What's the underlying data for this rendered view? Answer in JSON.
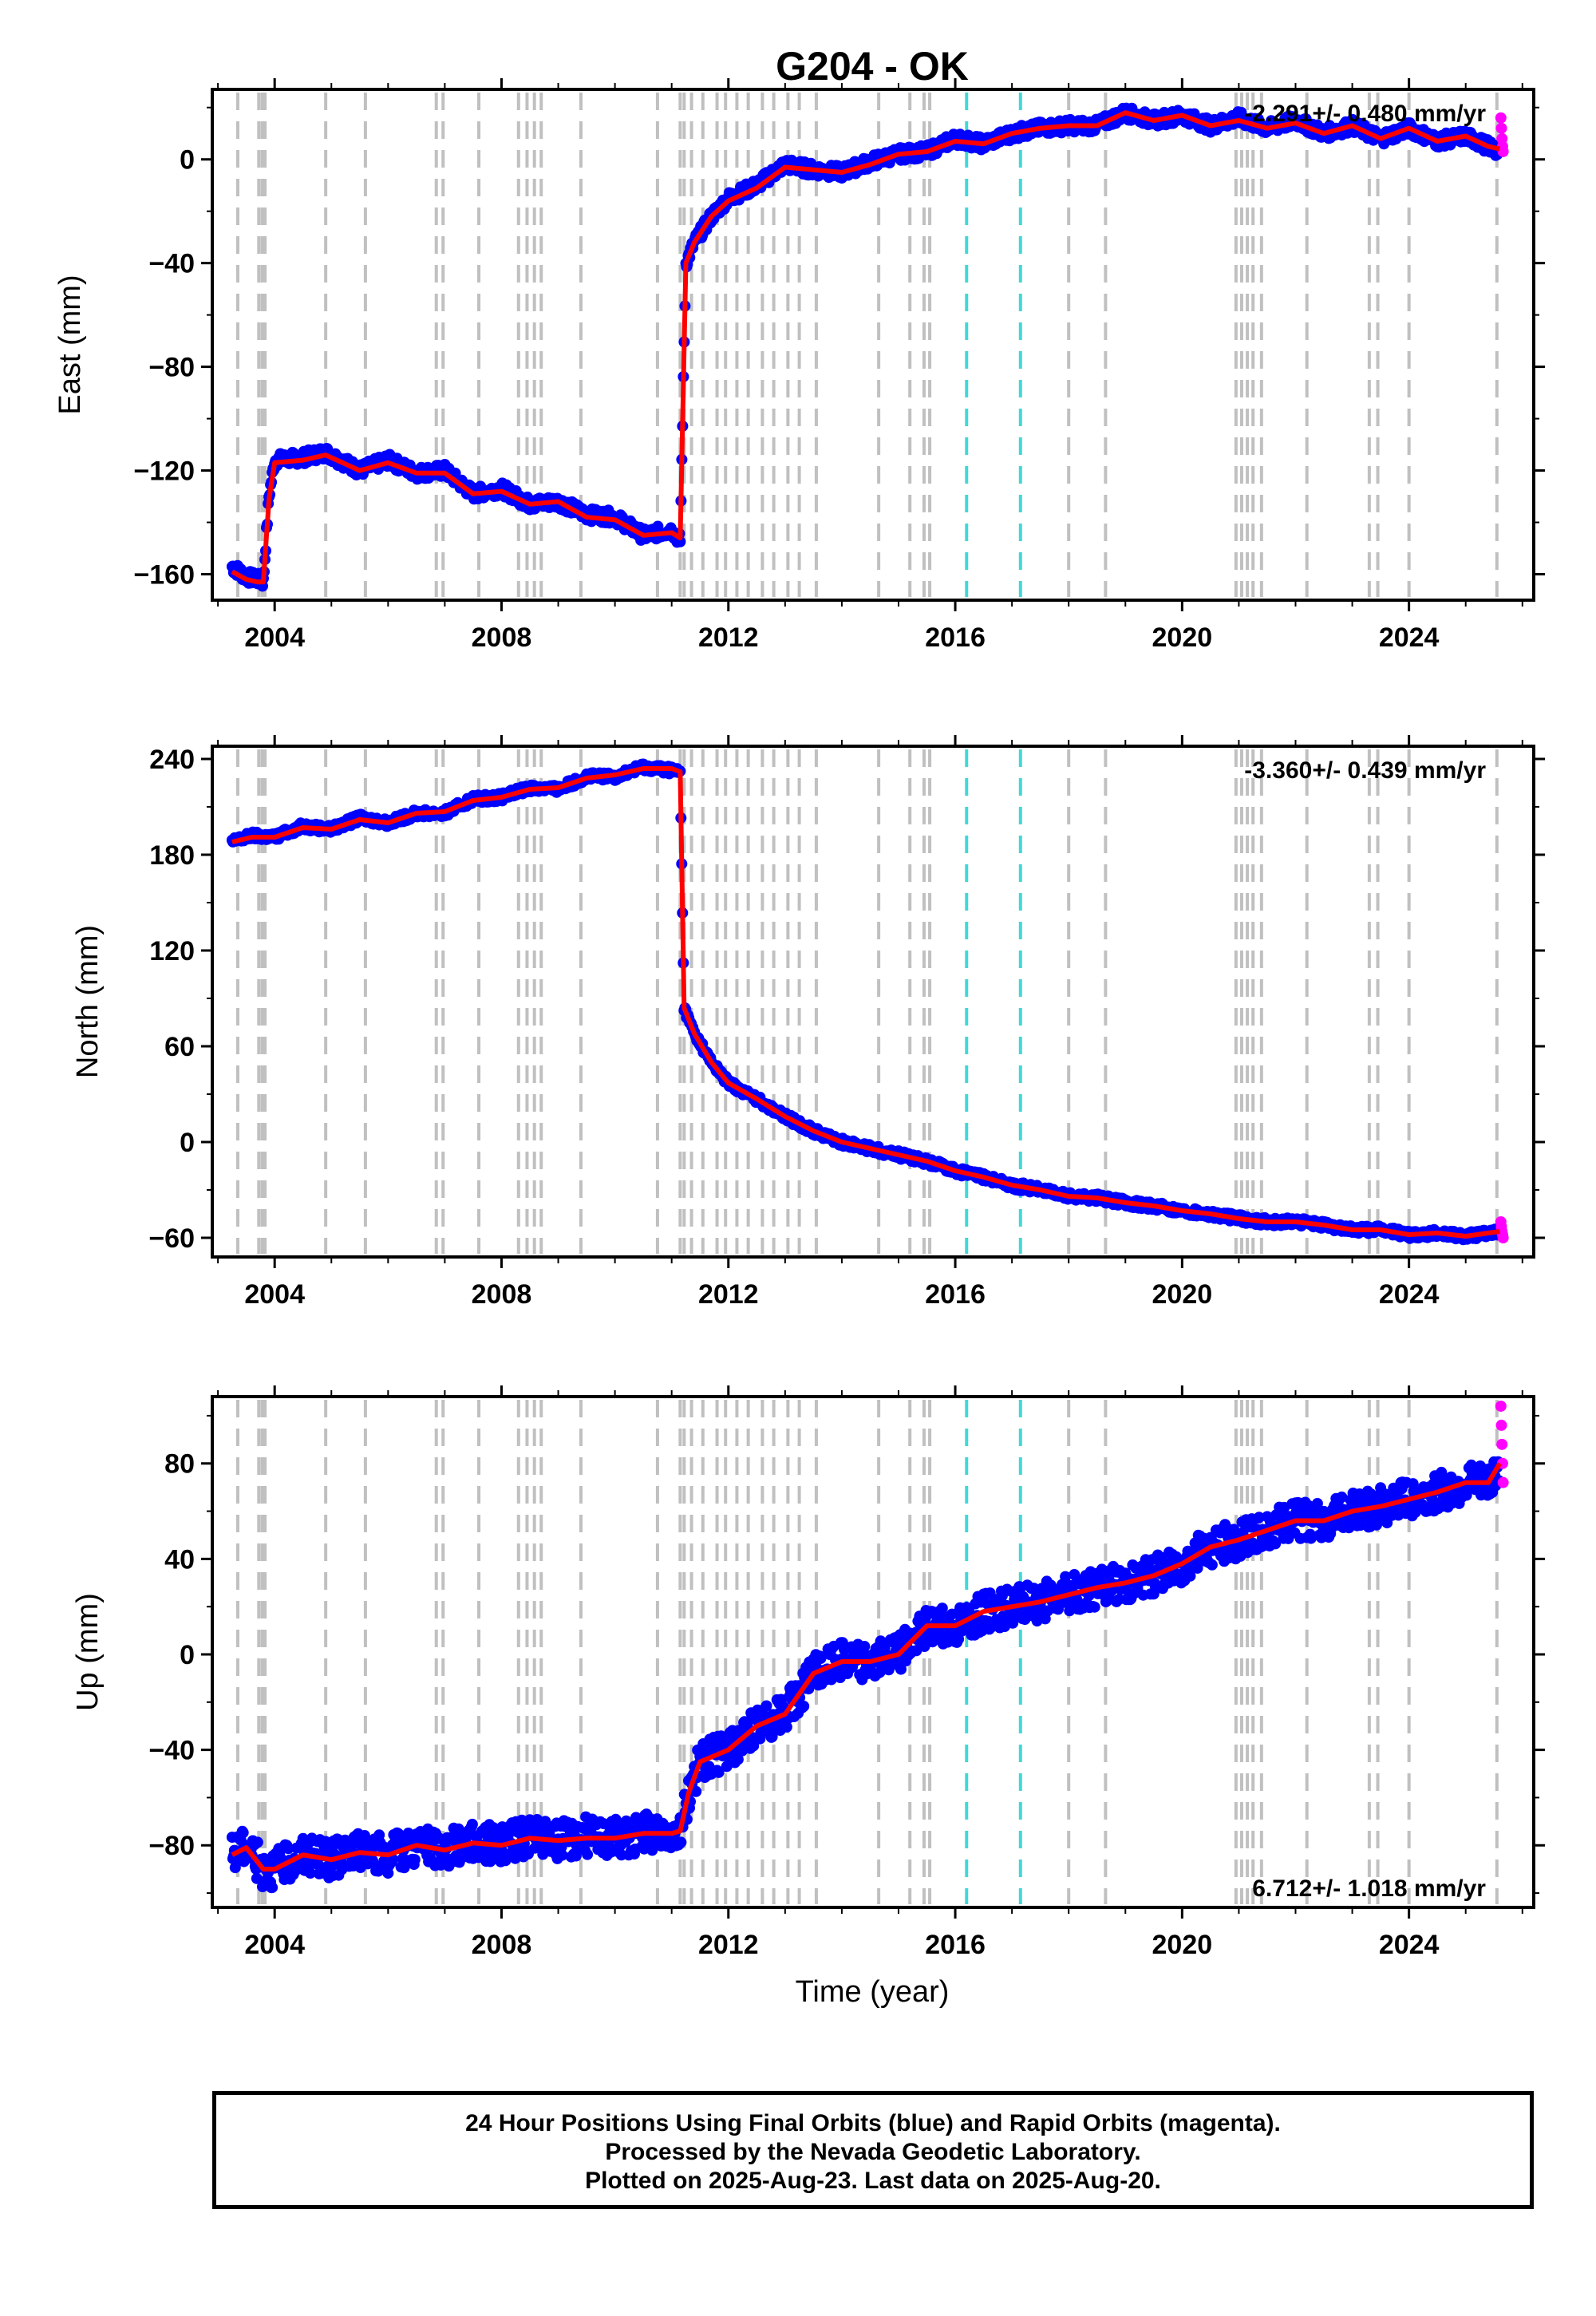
{
  "title": "G204 - OK",
  "xlabel": "Time (year)",
  "footer": {
    "line1": "24 Hour Positions Using Final Orbits (blue) and Rapid Orbits (magenta).",
    "line2": "Processed by the Nevada Geodetic Laboratory.",
    "line3": "Plotted on 2025-Aug-23. Last data on 2025-Aug-20."
  },
  "colors": {
    "final_orbits": "#0000ff",
    "rapid_orbits": "#ff00ff",
    "model": "#ff0000",
    "event_line": "#c0c0c0",
    "equipment_line": "#40d8d8"
  },
  "chart_data": [
    {
      "type": "scatter",
      "panel": "east",
      "ylabel": "East (mm)",
      "xlim": [
        2002.9,
        2026.2
      ],
      "ylim": [
        -170,
        27
      ],
      "yticks": [
        -160,
        -120,
        -80,
        -40,
        0
      ],
      "xticks": [
        2004,
        2008,
        2012,
        2016,
        2020,
        2024
      ],
      "rate_label": "-2.291+/- 0.480 mm/yr",
      "rate_position": "top-right",
      "series": [
        {
          "role": "final",
          "x": [
            2003.25,
            2003.5,
            2003.7,
            2003.8,
            2003.9,
            2004.0,
            2004.5,
            2004.9,
            2005.5,
            2006.0,
            2006.5,
            2007.0,
            2007.5,
            2008.0,
            2008.5,
            2009.0,
            2009.5,
            2010.0,
            2010.5,
            2011.0,
            2011.15,
            2011.25,
            2011.4,
            2011.7,
            2012.0,
            2012.5,
            2013.0,
            2013.5,
            2014.0,
            2014.5,
            2015.0,
            2015.5,
            2016.0,
            2016.5,
            2017.0,
            2017.5,
            2018.0,
            2018.5,
            2019.0,
            2019.5,
            2020.0,
            2020.5,
            2021.0,
            2021.5,
            2022.0,
            2022.5,
            2023.0,
            2023.5,
            2024.0,
            2024.5,
            2025.0,
            2025.4,
            2025.6
          ],
          "y": [
            -157,
            -161,
            -162,
            -163,
            -130,
            -116,
            -115,
            -113,
            -120,
            -116,
            -121,
            -120,
            -129,
            -127,
            -133,
            -132,
            -137,
            -138,
            -145,
            -143,
            -147,
            -40,
            -32,
            -22,
            -15,
            -10,
            -2,
            -4,
            -5,
            -1,
            2,
            3,
            8,
            6,
            10,
            12,
            13,
            13,
            18,
            15,
            17,
            13,
            16,
            12,
            15,
            10,
            13,
            8,
            12,
            7,
            9,
            5,
            3
          ]
        },
        {
          "role": "rapid",
          "x": [
            2025.62,
            2025.63,
            2025.64,
            2025.65,
            2025.66
          ],
          "y": [
            16,
            12,
            8,
            5,
            3
          ]
        },
        {
          "role": "model",
          "x": [
            2003.25,
            2003.5,
            2003.7,
            2003.8,
            2003.9,
            2004.0,
            2004.5,
            2004.9,
            2005.5,
            2006.0,
            2006.5,
            2007.0,
            2007.5,
            2008.0,
            2008.5,
            2009.0,
            2009.5,
            2010.0,
            2010.5,
            2011.0,
            2011.15,
            2011.25,
            2011.4,
            2011.7,
            2012.0,
            2012.5,
            2013.0,
            2013.5,
            2014.0,
            2014.5,
            2015.0,
            2015.5,
            2016.0,
            2016.5,
            2017.0,
            2017.5,
            2018.0,
            2018.5,
            2019.0,
            2019.5,
            2020.0,
            2020.5,
            2021.0,
            2021.5,
            2022.0,
            2022.5,
            2023.0,
            2023.5,
            2024.0,
            2024.5,
            2025.0,
            2025.4,
            2025.6
          ],
          "y": [
            -159,
            -162,
            -163,
            -163,
            -131,
            -117,
            -116,
            -114,
            -120,
            -117,
            -121,
            -121,
            -129,
            -128,
            -133,
            -132,
            -138,
            -139,
            -145,
            -144,
            -146,
            -40,
            -32,
            -22,
            -16,
            -11,
            -3,
            -4,
            -5,
            -2,
            2,
            3,
            7,
            6,
            10,
            12,
            13,
            13,
            18,
            15,
            17,
            13,
            15,
            12,
            14,
            10,
            13,
            8,
            12,
            7,
            9,
            5,
            4
          ]
        }
      ]
    },
    {
      "type": "scatter",
      "panel": "north",
      "ylabel": "North (mm)",
      "xlim": [
        2002.9,
        2026.2
      ],
      "ylim": [
        -72,
        248
      ],
      "yticks": [
        -60,
        0,
        60,
        120,
        180,
        240
      ],
      "xticks": [
        2004,
        2008,
        2012,
        2016,
        2020,
        2024
      ],
      "rate_label": "-3.360+/- 0.439 mm/yr",
      "rate_position": "top-right",
      "series": [
        {
          "role": "final",
          "x": [
            2003.25,
            2003.6,
            2004.0,
            2004.5,
            2005.0,
            2005.5,
            2006.0,
            2006.5,
            2007.0,
            2007.5,
            2008.0,
            2008.5,
            2009.0,
            2009.5,
            2010.0,
            2010.5,
            2011.0,
            2011.15,
            2011.22,
            2011.4,
            2011.7,
            2012.0,
            2012.5,
            2013.0,
            2013.5,
            2014.0,
            2014.5,
            2015.0,
            2015.5,
            2016.0,
            2016.5,
            2017.0,
            2017.5,
            2018.0,
            2018.5,
            2019.0,
            2019.5,
            2020.0,
            2020.5,
            2021.0,
            2021.5,
            2022.0,
            2022.5,
            2023.0,
            2023.5,
            2024.0,
            2024.5,
            2025.0,
            2025.4,
            2025.6
          ],
          "y": [
            188,
            192,
            191,
            198,
            196,
            203,
            200,
            206,
            206,
            215,
            216,
            222,
            221,
            229,
            229,
            235,
            233,
            232,
            84,
            68,
            50,
            37,
            27,
            16,
            7,
            0,
            -4,
            -8,
            -12,
            -18,
            -22,
            -27,
            -30,
            -34,
            -35,
            -38,
            -40,
            -43,
            -45,
            -48,
            -50,
            -50,
            -52,
            -55,
            -55,
            -58,
            -57,
            -59,
            -57,
            -56
          ]
        },
        {
          "role": "rapid",
          "x": [
            2025.62,
            2025.63,
            2025.64,
            2025.65,
            2025.66
          ],
          "y": [
            -50,
            -53,
            -56,
            -58,
            -60
          ]
        },
        {
          "role": "model",
          "x": [
            2003.25,
            2003.6,
            2004.0,
            2004.5,
            2005.0,
            2005.5,
            2006.0,
            2006.5,
            2007.0,
            2007.5,
            2008.0,
            2008.5,
            2009.0,
            2009.5,
            2010.0,
            2010.5,
            2011.0,
            2011.15,
            2011.22,
            2011.4,
            2011.7,
            2012.0,
            2012.5,
            2013.0,
            2013.5,
            2014.0,
            2014.5,
            2015.0,
            2015.5,
            2016.0,
            2016.5,
            2017.0,
            2017.5,
            2018.0,
            2018.5,
            2019.0,
            2019.5,
            2020.0,
            2020.5,
            2021.0,
            2021.5,
            2022.0,
            2022.5,
            2023.0,
            2023.5,
            2024.0,
            2024.5,
            2025.0,
            2025.4,
            2025.6
          ],
          "y": [
            188,
            191,
            191,
            197,
            196,
            202,
            200,
            206,
            207,
            214,
            216,
            221,
            222,
            228,
            230,
            234,
            234,
            232,
            84,
            68,
            50,
            37,
            27,
            16,
            7,
            0,
            -4,
            -8,
            -12,
            -18,
            -22,
            -27,
            -30,
            -34,
            -35,
            -38,
            -40,
            -43,
            -45,
            -48,
            -50,
            -50,
            -52,
            -55,
            -55,
            -58,
            -57,
            -59,
            -57,
            -56
          ]
        }
      ]
    },
    {
      "type": "scatter",
      "panel": "up",
      "ylabel": "Up (mm)",
      "xlim": [
        2002.9,
        2026.2
      ],
      "ylim": [
        -106,
        108
      ],
      "yticks": [
        -80,
        -40,
        0,
        40,
        80
      ],
      "xticks": [
        2004,
        2008,
        2012,
        2016,
        2020,
        2024
      ],
      "rate_label": "6.712+/- 1.018 mm/yr",
      "rate_position": "bottom-right",
      "series": [
        {
          "role": "final",
          "x": [
            2003.25,
            2003.5,
            2003.8,
            2004.0,
            2004.5,
            2005.0,
            2005.5,
            2006.0,
            2006.5,
            2007.0,
            2007.5,
            2008.0,
            2008.5,
            2009.0,
            2009.5,
            2010.0,
            2010.5,
            2011.0,
            2011.15,
            2011.3,
            2011.5,
            2012.0,
            2012.5,
            2013.0,
            2013.5,
            2014.0,
            2014.5,
            2015.0,
            2015.5,
            2016.0,
            2016.5,
            2017.0,
            2017.5,
            2018.0,
            2018.5,
            2019.0,
            2019.5,
            2020.0,
            2020.5,
            2021.0,
            2021.5,
            2022.0,
            2022.5,
            2023.0,
            2023.5,
            2024.0,
            2024.5,
            2025.0,
            2025.4,
            2025.6
          ],
          "y": [
            -84,
            -80,
            -90,
            -90,
            -84,
            -86,
            -82,
            -84,
            -80,
            -82,
            -78,
            -80,
            -76,
            -78,
            -76,
            -77,
            -75,
            -74,
            -74,
            -58,
            -45,
            -40,
            -30,
            -25,
            -8,
            -2,
            -3,
            0,
            12,
            12,
            18,
            20,
            22,
            25,
            28,
            30,
            33,
            38,
            45,
            48,
            52,
            56,
            56,
            60,
            62,
            65,
            68,
            72,
            72,
            80
          ]
        },
        {
          "role": "rapid",
          "x": [
            2025.62,
            2025.63,
            2025.64,
            2025.65,
            2025.66
          ],
          "y": [
            104,
            96,
            88,
            80,
            72
          ]
        },
        {
          "role": "model",
          "x": [
            2003.25,
            2003.5,
            2003.8,
            2004.0,
            2004.5,
            2005.0,
            2005.5,
            2006.0,
            2006.5,
            2007.0,
            2007.5,
            2008.0,
            2008.5,
            2009.0,
            2009.5,
            2010.0,
            2010.5,
            2011.0,
            2011.15,
            2011.3,
            2011.5,
            2012.0,
            2012.5,
            2013.0,
            2013.5,
            2014.0,
            2014.5,
            2015.0,
            2015.5,
            2016.0,
            2016.5,
            2017.0,
            2017.5,
            2018.0,
            2018.5,
            2019.0,
            2019.5,
            2020.0,
            2020.5,
            2021.0,
            2021.5,
            2022.0,
            2022.5,
            2023.0,
            2023.5,
            2024.0,
            2024.5,
            2025.0,
            2025.4,
            2025.6
          ],
          "y": [
            -84,
            -81,
            -90,
            -90,
            -84,
            -86,
            -83,
            -84,
            -80,
            -82,
            -79,
            -80,
            -77,
            -78,
            -77,
            -77,
            -75,
            -75,
            -74,
            -58,
            -45,
            -40,
            -30,
            -25,
            -8,
            -3,
            -3,
            0,
            12,
            12,
            18,
            20,
            22,
            25,
            28,
            30,
            33,
            38,
            45,
            48,
            52,
            56,
            56,
            60,
            62,
            65,
            68,
            72,
            72,
            80
          ]
        }
      ]
    }
  ],
  "event_lines": [
    2003.35,
    2003.72,
    2003.78,
    2003.83,
    2004.9,
    2005.6,
    2006.85,
    2006.97,
    2007.6,
    2008.3,
    2008.45,
    2008.58,
    2008.7,
    2009.4,
    2010.75,
    2011.15,
    2011.22,
    2011.35,
    2011.55,
    2011.8,
    2011.95,
    2012.15,
    2012.35,
    2012.6,
    2012.8,
    2013.05,
    2013.25,
    2013.55,
    2014.65,
    2015.2,
    2015.45,
    2015.55,
    2018.0,
    2018.65,
    2020.95,
    2021.05,
    2021.15,
    2021.25,
    2021.4,
    2022.2,
    2023.3,
    2023.45,
    2024.0,
    2025.55
  ],
  "equipment_lines": [
    2016.2,
    2017.15
  ]
}
